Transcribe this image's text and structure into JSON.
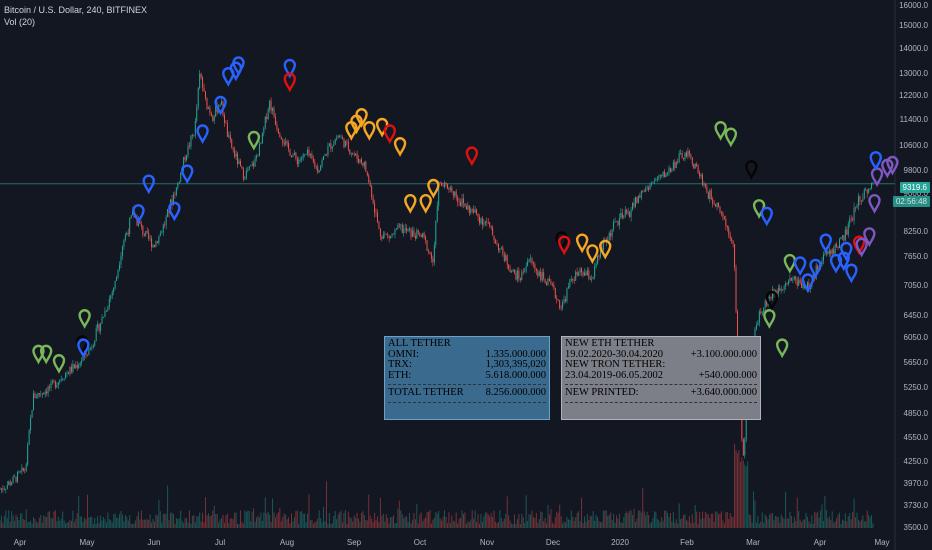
{
  "header": {
    "symbol_line": "Bitcoin / U.S. Dollar, 240, BITFINEX",
    "indicator_line": "Vol (20)"
  },
  "price_tags": {
    "last_price": "9319.6",
    "countdown": "02:56:48"
  },
  "tether_box": {
    "title": "ALL TETHER",
    "rows": [
      {
        "label": "OMNI:",
        "value": "1.335.000.000"
      },
      {
        "label": "TRX:",
        "value": "1,303,395,020"
      },
      {
        "label": "ETH:",
        "value": "5.618.000.000"
      }
    ],
    "total_label": "TOTAL TETHER",
    "total_value": "8.256.000.000"
  },
  "new_box": {
    "title1": "NEW ETH TETHER",
    "row1_label": "19.02.2020-30.04.2020",
    "row1_value": "+3.100.000.000",
    "title2": "NEW TRON TETHER:",
    "row2_label": "23.04.2019-06.05.2002",
    "row2_value": "+540.000.000",
    "total_label": "NEW PRINTED:",
    "total_value": "+3.640.000.000"
  },
  "colors": {
    "background": "#131722",
    "candle_up": "#26a69a",
    "candle_down": "#ef5350",
    "horizontal_line": "#2a6f6a",
    "marker_green": "#79b759",
    "marker_blue": "#2962ff",
    "marker_orange": "#f5a623",
    "marker_red": "#e01010",
    "marker_black": "#050505",
    "marker_purple": "#7e57c2"
  },
  "chart_data": {
    "type": "candlestick",
    "y_axis_ticks": [
      "16000.0",
      "15000.0",
      "14000.0",
      "13000.0",
      "12200.0",
      "11400.0",
      "10600.0",
      "9800.0",
      "9000.0",
      "8250.0",
      "7650.0",
      "7050.0",
      "6450.0",
      "6050.0",
      "5650.0",
      "5250.0",
      "4850.0",
      "4550.0",
      "4250.0",
      "3970.0",
      "3730.0",
      "3500.0"
    ],
    "x_axis_labels": [
      "Apr",
      "May",
      "Jun",
      "Jul",
      "Aug",
      "Sep",
      "Oct",
      "Nov",
      "Dec",
      "2020",
      "Feb",
      "Mar",
      "Apr",
      "May"
    ],
    "horizontal_line_price": 9319.6,
    "price_path": [
      [
        0,
        3900
      ],
      [
        0.5,
        4000
      ],
      [
        1,
        4150
      ],
      [
        1.3,
        5100
      ],
      [
        2,
        5250
      ],
      [
        2.5,
        5450
      ],
      [
        3,
        5600
      ],
      [
        3.5,
        5850
      ],
      [
        4,
        6400
      ],
      [
        4.5,
        7100
      ],
      [
        4.8,
        8000
      ],
      [
        5.2,
        8600
      ],
      [
        5.6,
        8200
      ],
      [
        6,
        7900
      ],
      [
        6.5,
        8500
      ],
      [
        6.9,
        9200
      ],
      [
        7.2,
        10200
      ],
      [
        7.6,
        11100
      ],
      [
        7.8,
        13000
      ],
      [
        8,
        12000
      ],
      [
        8.3,
        11500
      ],
      [
        8.6,
        12000
      ],
      [
        8.9,
        10800
      ],
      [
        9.2,
        10200
      ],
      [
        9.5,
        9600
      ],
      [
        9.9,
        10000
      ],
      [
        10.2,
        10700
      ],
      [
        10.5,
        12000
      ],
      [
        10.8,
        11200
      ],
      [
        11.2,
        10500
      ],
      [
        11.6,
        10100
      ],
      [
        12,
        10300
      ],
      [
        12.4,
        9800
      ],
      [
        12.8,
        10500
      ],
      [
        13.2,
        10900
      ],
      [
        13.5,
        10600
      ],
      [
        13.9,
        10200
      ],
      [
        14.2,
        10000
      ],
      [
        14.5,
        9000
      ],
      [
        14.8,
        8200
      ],
      [
        15.2,
        8100
      ],
      [
        15.6,
        8300
      ],
      [
        16,
        8200
      ],
      [
        16.5,
        8100
      ],
      [
        16.9,
        7500
      ],
      [
        17.1,
        9300
      ],
      [
        17.5,
        9200
      ],
      [
        18,
        8800
      ],
      [
        18.5,
        8600
      ],
      [
        19,
        8400
      ],
      [
        19.5,
        7800
      ],
      [
        20,
        7300
      ],
      [
        20.3,
        7200
      ],
      [
        20.6,
        7600
      ],
      [
        21,
        7300
      ],
      [
        21.5,
        7000
      ],
      [
        21.9,
        6600
      ],
      [
        22.3,
        7200
      ],
      [
        22.7,
        7300
      ],
      [
        23.1,
        7200
      ],
      [
        23.5,
        7900
      ],
      [
        24,
        8400
      ],
      [
        24.5,
        8600
      ],
      [
        25,
        9000
      ],
      [
        25.5,
        9400
      ],
      [
        26,
        9700
      ],
      [
        26.5,
        10200
      ],
      [
        26.8,
        10300
      ],
      [
        27.2,
        9800
      ],
      [
        27.6,
        9000
      ],
      [
        28,
        8800
      ],
      [
        28.3,
        8400
      ],
      [
        28.6,
        8000
      ],
      [
        28.8,
        5200
      ],
      [
        29,
        4200
      ],
      [
        29.2,
        5600
      ],
      [
        29.6,
        6500
      ],
      [
        30,
        6800
      ],
      [
        30.4,
        7000
      ],
      [
        30.8,
        7200
      ],
      [
        31.2,
        7100
      ],
      [
        31.6,
        7000
      ],
      [
        32,
        7600
      ],
      [
        32.5,
        7800
      ],
      [
        33,
        8200
      ],
      [
        33.5,
        8900
      ],
      [
        33.8,
        9100
      ],
      [
        34.1,
        9350
      ]
    ],
    "markers": [
      {
        "color": "green",
        "x": 1.5,
        "price": 5700
      },
      {
        "color": "green",
        "x": 1.8,
        "price": 5700
      },
      {
        "color": "green",
        "x": 2.3,
        "price": 5550
      },
      {
        "color": "black",
        "x": 3.2,
        "price": 5850
      },
      {
        "color": "blue",
        "x": 3.25,
        "price": 5800
      },
      {
        "color": "green",
        "x": 3.3,
        "price": 6300
      },
      {
        "color": "blue",
        "x": 5.4,
        "price": 8500
      },
      {
        "color": "blue",
        "x": 5.8,
        "price": 9150
      },
      {
        "color": "blue",
        "x": 6.8,
        "price": 8550
      },
      {
        "color": "blue",
        "x": 7.3,
        "price": 9500
      },
      {
        "color": "blue",
        "x": 7.9,
        "price": 10800
      },
      {
        "color": "blue",
        "x": 8.6,
        "price": 11700
      },
      {
        "color": "blue",
        "x": 8.9,
        "price": 12700
      },
      {
        "color": "blue",
        "x": 9.2,
        "price": 12900
      },
      {
        "color": "blue",
        "x": 9.3,
        "price": 13100
      },
      {
        "color": "green",
        "x": 9.9,
        "price": 10600
      },
      {
        "color": "blue",
        "x": 11.3,
        "price": 13000
      },
      {
        "color": "red",
        "x": 11.3,
        "price": 12500
      },
      {
        "color": "orange",
        "x": 13.7,
        "price": 10900
      },
      {
        "color": "orange",
        "x": 13.9,
        "price": 11100
      },
      {
        "color": "orange",
        "x": 14.1,
        "price": 11300
      },
      {
        "color": "orange",
        "x": 14.4,
        "price": 10900
      },
      {
        "color": "orange",
        "x": 14.9,
        "price": 11000
      },
      {
        "color": "red",
        "x": 15.2,
        "price": 10800
      },
      {
        "color": "orange",
        "x": 15.6,
        "price": 10400
      },
      {
        "color": "orange",
        "x": 16,
        "price": 8700
      },
      {
        "color": "orange",
        "x": 16.6,
        "price": 8700
      },
      {
        "color": "orange",
        "x": 16.9,
        "price": 9000
      },
      {
        "color": "red",
        "x": 18.4,
        "price": 10100
      },
      {
        "color": "black",
        "x": 21.9,
        "price": 7900
      },
      {
        "color": "red",
        "x": 22,
        "price": 7800
      },
      {
        "color": "orange",
        "x": 22.7,
        "price": 7850
      },
      {
        "color": "orange",
        "x": 23.1,
        "price": 7600
      },
      {
        "color": "orange",
        "x": 23.6,
        "price": 7700
      },
      {
        "color": "green",
        "x": 28.1,
        "price": 10900
      },
      {
        "color": "green",
        "x": 28.5,
        "price": 10700
      },
      {
        "color": "black",
        "x": 29.3,
        "price": 9650
      },
      {
        "color": "green",
        "x": 29.6,
        "price": 8600
      },
      {
        "color": "blue",
        "x": 29.9,
        "price": 8450
      },
      {
        "color": "green",
        "x": 30,
        "price": 6300
      },
      {
        "color": "black",
        "x": 30.1,
        "price": 6650
      },
      {
        "color": "green",
        "x": 30.5,
        "price": 5800
      },
      {
        "color": "green",
        "x": 30.8,
        "price": 7400
      },
      {
        "color": "blue",
        "x": 31.2,
        "price": 7350
      },
      {
        "color": "blue",
        "x": 31.5,
        "price": 7000
      },
      {
        "color": "blue",
        "x": 31.8,
        "price": 7300
      },
      {
        "color": "blue",
        "x": 32.2,
        "price": 7850
      },
      {
        "color": "blue",
        "x": 32.6,
        "price": 7400
      },
      {
        "color": "blue",
        "x": 32.9,
        "price": 7450
      },
      {
        "color": "blue",
        "x": 33,
        "price": 7650
      },
      {
        "color": "blue",
        "x": 33.2,
        "price": 7200
      },
      {
        "color": "red",
        "x": 33.5,
        "price": 7800
      },
      {
        "color": "purple",
        "x": 33.6,
        "price": 7750
      },
      {
        "color": "purple",
        "x": 33.9,
        "price": 8000
      },
      {
        "color": "purple",
        "x": 34.1,
        "price": 8700
      },
      {
        "color": "purple",
        "x": 34.2,
        "price": 9400
      },
      {
        "color": "blue",
        "x": 34.15,
        "price": 9950
      },
      {
        "color": "purple",
        "x": 34.6,
        "price": 9700
      },
      {
        "color": "purple",
        "x": 34.8,
        "price": 9800
      }
    ]
  }
}
